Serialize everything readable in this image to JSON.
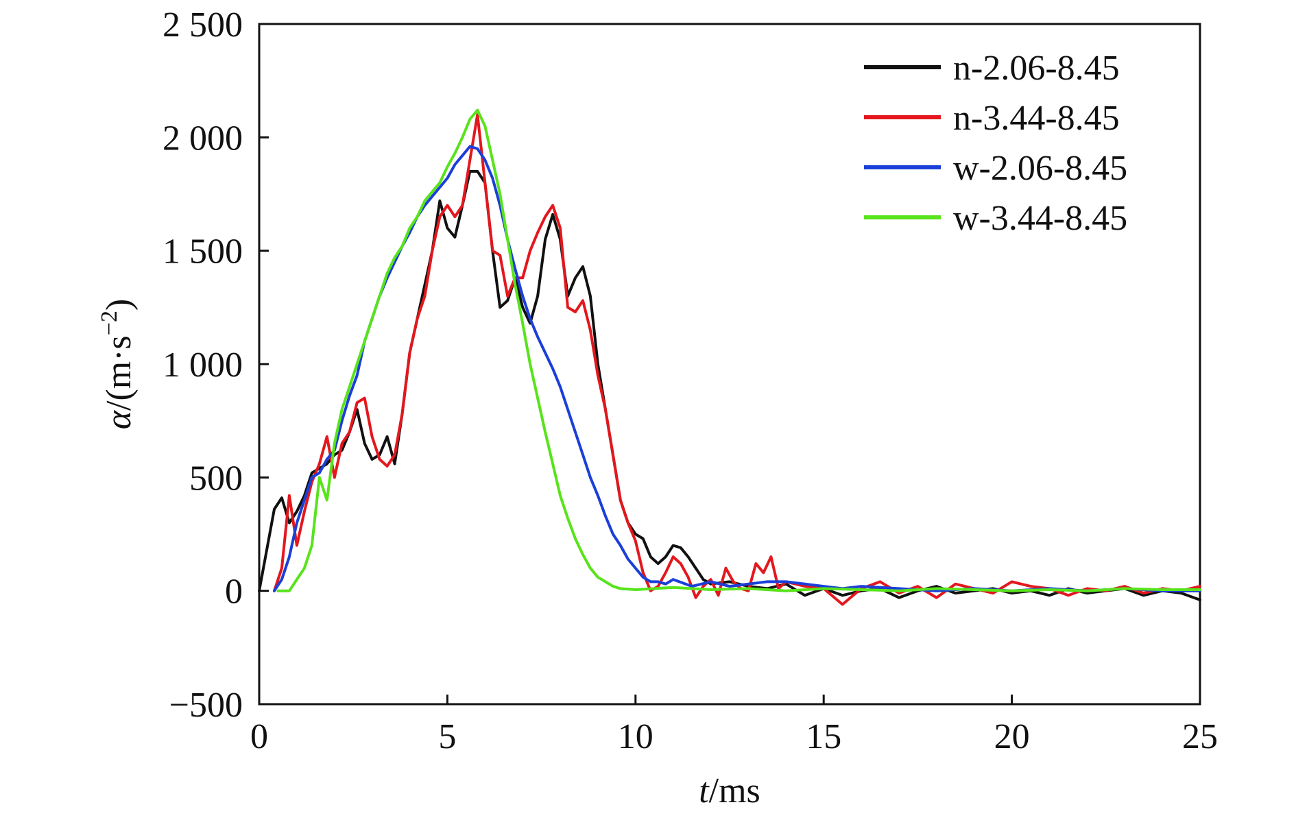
{
  "chart_data": {
    "type": "line",
    "title": "",
    "xlabel": {
      "italic": "t",
      "rest": "/ms"
    },
    "ylabel": {
      "italic": "α",
      "rest": "/(m·s",
      "sup": "−2",
      "close": ")"
    },
    "xlim": [
      0,
      25
    ],
    "ylim": [
      -500,
      2500
    ],
    "x_ticks": [
      0,
      5,
      10,
      15,
      20,
      25
    ],
    "x_tick_labels": [
      "0",
      "5",
      "10",
      "15",
      "20",
      "25"
    ],
    "y_ticks": [
      -500,
      0,
      500,
      1000,
      1500,
      2000,
      2500
    ],
    "y_tick_labels": [
      "−500",
      "0",
      "500",
      "1 000",
      "1 500",
      "2 000",
      "2 500"
    ],
    "grid": false,
    "legend_position": "top-right",
    "series": [
      {
        "name": "n-2.06-8.45",
        "color": "#111111",
        "x": [
          0,
          0.2,
          0.4,
          0.6,
          0.8,
          1.0,
          1.2,
          1.4,
          1.6,
          1.8,
          2.0,
          2.2,
          2.4,
          2.6,
          2.8,
          3.0,
          3.2,
          3.4,
          3.6,
          3.8,
          4.0,
          4.2,
          4.4,
          4.6,
          4.8,
          5.0,
          5.2,
          5.4,
          5.6,
          5.8,
          6.0,
          6.2,
          6.4,
          6.6,
          6.8,
          7.0,
          7.2,
          7.4,
          7.6,
          7.8,
          8.0,
          8.2,
          8.4,
          8.6,
          8.8,
          9.0,
          9.2,
          9.4,
          9.6,
          9.8,
          10.0,
          10.2,
          10.4,
          10.6,
          10.8,
          11.0,
          11.2,
          11.4,
          11.6,
          11.8,
          12.0,
          12.5,
          13.0,
          13.5,
          14.0,
          14.5,
          15.0,
          15.5,
          16.0,
          16.5,
          17.0,
          17.5,
          18.0,
          18.5,
          19.0,
          19.5,
          20.0,
          20.5,
          21.0,
          21.5,
          22.0,
          22.5,
          23.0,
          23.5,
          24.0,
          24.5,
          25.0
        ],
        "values": [
          0,
          180,
          360,
          410,
          300,
          350,
          420,
          520,
          540,
          560,
          600,
          620,
          700,
          800,
          650,
          580,
          600,
          680,
          560,
          780,
          1050,
          1200,
          1350,
          1500,
          1720,
          1600,
          1560,
          1700,
          1850,
          1850,
          1800,
          1500,
          1250,
          1280,
          1380,
          1250,
          1180,
          1300,
          1550,
          1660,
          1550,
          1300,
          1380,
          1430,
          1300,
          1000,
          800,
          600,
          400,
          300,
          250,
          230,
          150,
          120,
          150,
          200,
          190,
          150,
          100,
          50,
          30,
          40,
          20,
          10,
          30,
          -20,
          10,
          -20,
          0,
          10,
          -30,
          0,
          20,
          -10,
          0,
          10,
          -10,
          0,
          -20,
          10,
          -10,
          0,
          10,
          -20,
          0,
          -10,
          -40
        ]
      },
      {
        "name": "n-3.44-8.45",
        "color": "#e3171d",
        "x": [
          0.4,
          0.6,
          0.8,
          1.0,
          1.2,
          1.4,
          1.6,
          1.8,
          2.0,
          2.2,
          2.4,
          2.6,
          2.8,
          3.0,
          3.2,
          3.4,
          3.6,
          3.8,
          4.0,
          4.2,
          4.4,
          4.6,
          4.8,
          5.0,
          5.2,
          5.4,
          5.6,
          5.8,
          6.0,
          6.2,
          6.4,
          6.6,
          6.8,
          7.0,
          7.2,
          7.4,
          7.6,
          7.8,
          8.0,
          8.2,
          8.4,
          8.6,
          8.8,
          9.0,
          9.2,
          9.4,
          9.6,
          9.8,
          10.0,
          10.2,
          10.4,
          10.6,
          10.8,
          11.0,
          11.2,
          11.4,
          11.6,
          11.8,
          12.0,
          12.2,
          12.4,
          12.6,
          12.8,
          13.0,
          13.2,
          13.4,
          13.6,
          13.8,
          14.0,
          14.5,
          15.0,
          15.5,
          16.0,
          16.5,
          17.0,
          17.5,
          18.0,
          18.5,
          19.0,
          19.5,
          20.0,
          20.5,
          21.0,
          21.5,
          22.0,
          22.5,
          23.0,
          23.5,
          24.0,
          24.5,
          25.0
        ],
        "values": [
          0,
          100,
          420,
          200,
          350,
          480,
          560,
          680,
          500,
          650,
          700,
          830,
          850,
          680,
          580,
          550,
          600,
          780,
          1050,
          1200,
          1300,
          1500,
          1650,
          1700,
          1650,
          1700,
          1900,
          2100,
          1800,
          1500,
          1480,
          1300,
          1380,
          1380,
          1500,
          1580,
          1650,
          1700,
          1600,
          1250,
          1230,
          1280,
          1150,
          950,
          800,
          600,
          400,
          300,
          220,
          80,
          0,
          20,
          80,
          150,
          120,
          60,
          -30,
          20,
          50,
          -20,
          100,
          40,
          10,
          0,
          120,
          80,
          150,
          10,
          40,
          20,
          10,
          -60,
          10,
          40,
          -10,
          20,
          -30,
          30,
          10,
          -10,
          40,
          20,
          10,
          -20,
          10,
          0,
          20,
          -10,
          10,
          0,
          20
        ]
      },
      {
        "name": "w-2.06-8.45",
        "color": "#1b3fd8",
        "x": [
          0.4,
          0.6,
          0.8,
          1.0,
          1.2,
          1.4,
          1.6,
          1.8,
          2.0,
          2.2,
          2.4,
          2.6,
          2.8,
          3.0,
          3.2,
          3.4,
          3.6,
          3.8,
          4.0,
          4.2,
          4.4,
          4.6,
          4.8,
          5.0,
          5.2,
          5.4,
          5.6,
          5.8,
          6.0,
          6.2,
          6.4,
          6.6,
          6.8,
          7.0,
          7.2,
          7.4,
          7.6,
          7.8,
          8.0,
          8.2,
          8.4,
          8.6,
          8.8,
          9.0,
          9.2,
          9.4,
          9.6,
          9.8,
          10.0,
          10.2,
          10.4,
          10.6,
          10.8,
          11.0,
          11.5,
          12.0,
          12.5,
          13.0,
          13.5,
          14.0,
          14.5,
          15.0,
          15.5,
          16.0,
          17.0,
          18.0,
          19.0,
          20.0,
          21.0,
          22.0,
          23.0,
          24.0,
          25.0
        ],
        "values": [
          0,
          50,
          150,
          300,
          400,
          500,
          520,
          580,
          620,
          750,
          860,
          950,
          1100,
          1200,
          1300,
          1380,
          1450,
          1520,
          1580,
          1650,
          1700,
          1740,
          1780,
          1820,
          1880,
          1920,
          1960,
          1950,
          1900,
          1820,
          1700,
          1550,
          1420,
          1300,
          1200,
          1120,
          1050,
          980,
          900,
          800,
          700,
          600,
          500,
          420,
          330,
          250,
          200,
          140,
          100,
          60,
          40,
          40,
          30,
          50,
          20,
          40,
          20,
          30,
          40,
          40,
          30,
          20,
          10,
          20,
          10,
          0,
          10,
          0,
          10,
          0,
          10,
          0,
          0
        ]
      },
      {
        "name": "w-3.44-8.45",
        "color": "#58e31b",
        "x": [
          0.5,
          0.8,
          1.0,
          1.2,
          1.4,
          1.6,
          1.8,
          2.0,
          2.2,
          2.4,
          2.6,
          2.8,
          3.0,
          3.2,
          3.4,
          3.6,
          3.8,
          4.0,
          4.2,
          4.4,
          4.6,
          4.8,
          5.0,
          5.2,
          5.4,
          5.6,
          5.8,
          6.0,
          6.2,
          6.4,
          6.6,
          6.8,
          7.0,
          7.2,
          7.4,
          7.6,
          7.8,
          8.0,
          8.2,
          8.4,
          8.6,
          8.8,
          9.0,
          9.2,
          9.4,
          9.6,
          10.0,
          10.5,
          11.0,
          12.0,
          13.0,
          14.0,
          15.0,
          16.0,
          17.0,
          18.0,
          19.0,
          20.0,
          21.0,
          22.0,
          23.0,
          24.0,
          25.0
        ],
        "values": [
          0,
          0,
          50,
          100,
          200,
          500,
          400,
          650,
          800,
          900,
          1000,
          1100,
          1200,
          1300,
          1400,
          1470,
          1520,
          1600,
          1650,
          1720,
          1760,
          1800,
          1870,
          1930,
          2000,
          2080,
          2120,
          2050,
          1900,
          1750,
          1550,
          1350,
          1180,
          1000,
          850,
          700,
          560,
          420,
          320,
          230,
          160,
          100,
          60,
          40,
          20,
          10,
          5,
          10,
          15,
          5,
          10,
          0,
          10,
          5,
          0,
          10,
          5,
          0,
          5,
          0,
          10,
          5,
          5
        ]
      }
    ]
  }
}
